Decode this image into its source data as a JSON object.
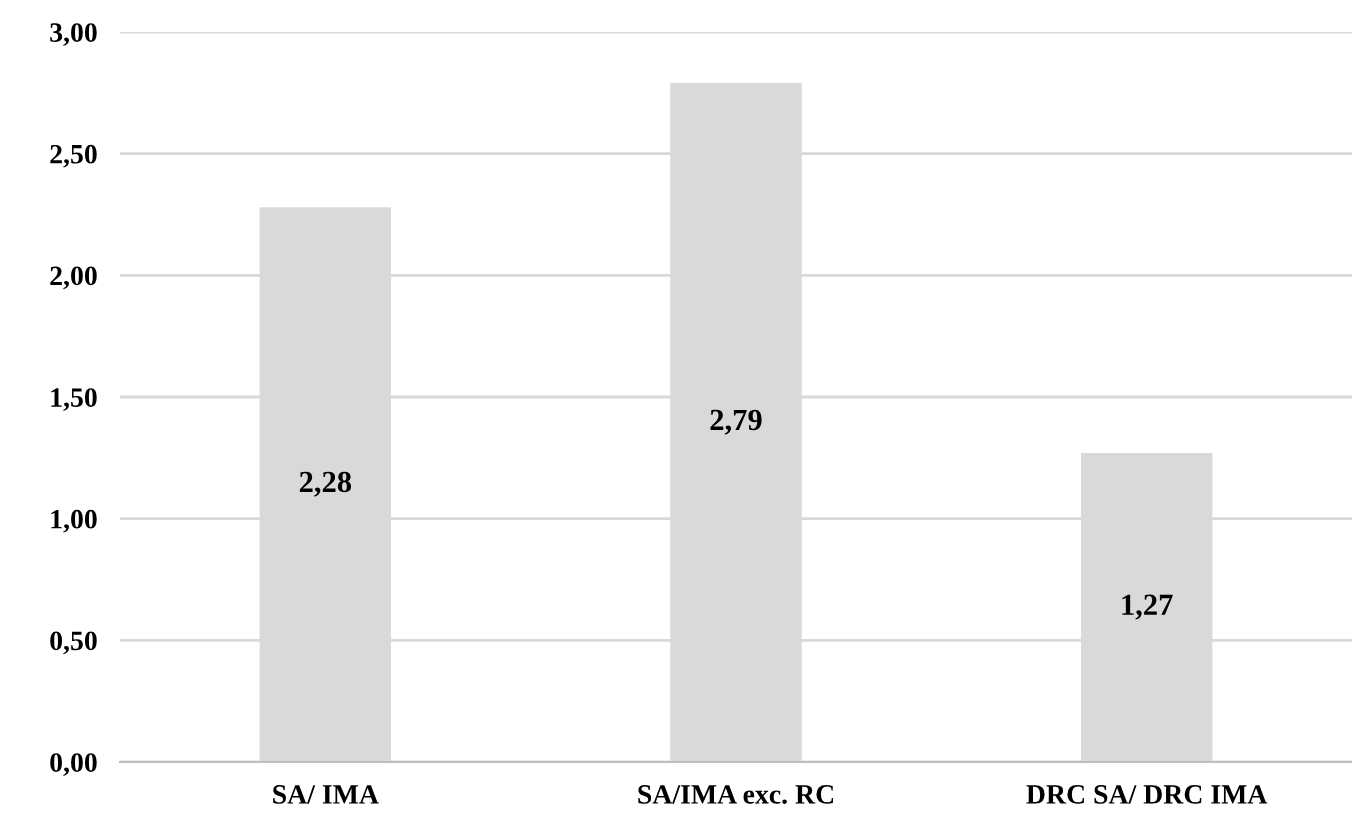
{
  "chart_data": {
    "type": "bar",
    "categories": [
      "SA/ IMA",
      "SA/IMA exc. RC",
      "DRC SA/ DRC IMA"
    ],
    "values": [
      2.28,
      2.79,
      1.27
    ],
    "value_labels": [
      "2,28",
      "2,79",
      "1,27"
    ],
    "color": "#d9d9d9",
    "ylim": [
      0,
      3
    ],
    "yticks": [
      {
        "value": 0,
        "label": "0,00"
      },
      {
        "value": 0.5,
        "label": "0,50"
      },
      {
        "value": 1,
        "label": "1,00"
      },
      {
        "value": 1.5,
        "label": "1,50"
      },
      {
        "value": 2,
        "label": "2,00"
      },
      {
        "value": 2.5,
        "label": "2,50"
      },
      {
        "value": 3,
        "label": "3,00"
      }
    ],
    "grid": "y"
  }
}
